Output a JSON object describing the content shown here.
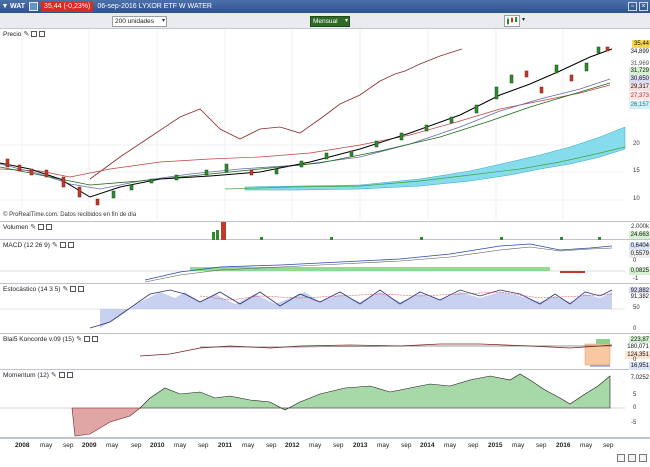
{
  "titlebar": {
    "symbol": "WAT",
    "change": "35,44 (-0,23%)",
    "date_title": "06-sep-2016 LYXOR ETF W WATER"
  },
  "toolbar": {
    "units": "200 unidades",
    "period": "Mensual"
  },
  "panels": {
    "price": {
      "label": "Precio",
      "last": "35,44",
      "tags": [
        "34,899",
        "31,969",
        "31,729",
        "30,650",
        "29,317",
        "27,373",
        "26,157"
      ],
      "scale": [
        "20",
        "15",
        "10"
      ],
      "watermark": "© ProRealTime.com. Datos recibidos en fin de día"
    },
    "volume": {
      "label": "Volumen",
      "scale_top": "2.000k",
      "tag": "24.663"
    },
    "macd": {
      "label": "MACD (12 26 9)",
      "tags": [
        "0,6404",
        "0,5579",
        "0,0825"
      ],
      "scale": [
        "0",
        "-1"
      ]
    },
    "stoch": {
      "label": "Estocástico (14 3 5)",
      "tags": [
        "92,882",
        "91,382"
      ],
      "scale": [
        "50",
        "0"
      ]
    },
    "koncorde": {
      "label": "Blai5 Koncorde v.09 (15)",
      "tags": [
        "223,87",
        "180,071",
        "124,351",
        "16,951"
      ],
      "scale": [
        "0"
      ]
    },
    "momentum": {
      "label": "Momentum (12)",
      "tag": "7,0252",
      "scale": [
        "5",
        "0",
        "-5"
      ]
    }
  },
  "xaxis": {
    "labels": [
      "2008",
      "may",
      "sep",
      "2009",
      "may",
      "sep",
      "2010",
      "may",
      "sep",
      "2011",
      "may",
      "sep",
      "2012",
      "may",
      "sep",
      "2013",
      "may",
      "sep",
      "2014",
      "may",
      "sep",
      "2015",
      "may",
      "sep",
      "2016",
      "may",
      "sep"
    ]
  },
  "icons": {
    "window": [
      "restore-icon",
      "close-icon"
    ],
    "toolbar": [
      "chart-type-icon"
    ],
    "corner": [
      "zoom-in-icon",
      "zoom-out-icon",
      "settings-icon"
    ]
  }
}
